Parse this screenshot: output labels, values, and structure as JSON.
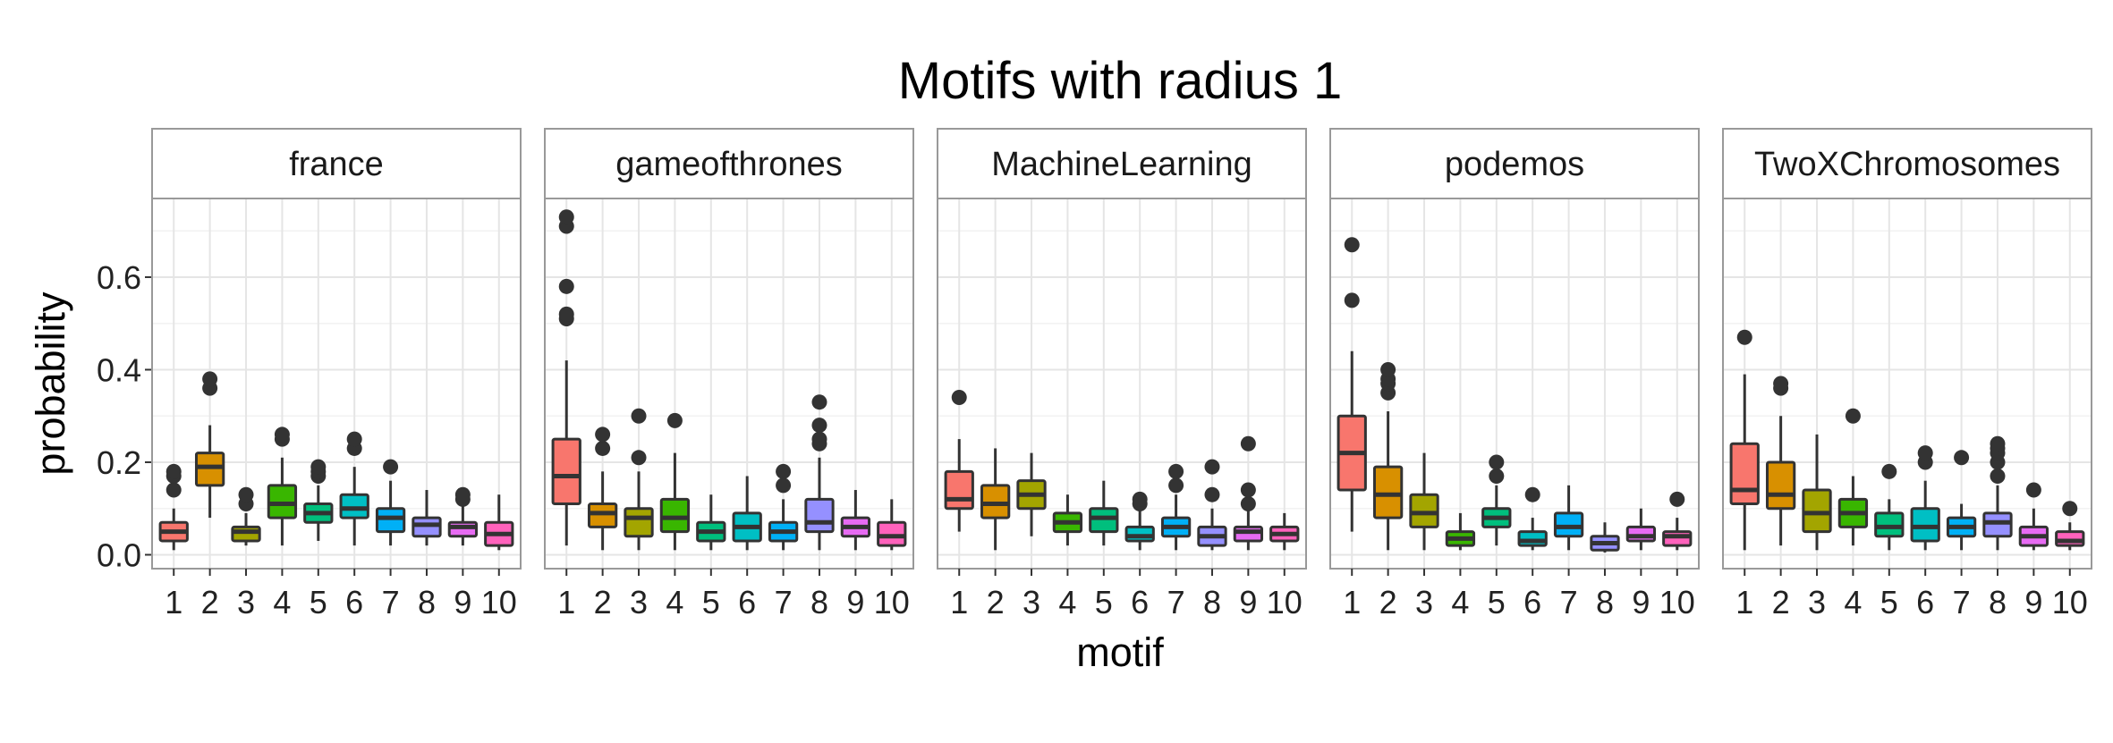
{
  "chart_data": {
    "type": "boxplot",
    "title": "Motifs with radius 1",
    "xlabel": "motif",
    "ylabel": "probability",
    "ylim": [
      -0.03,
      0.77
    ],
    "yticks": [
      0.0,
      0.2,
      0.4,
      0.6
    ],
    "ytick_labels": [
      "0.0",
      "0.2",
      "0.4",
      "0.6"
    ],
    "categories": [
      "1",
      "2",
      "3",
      "4",
      "5",
      "6",
      "7",
      "8",
      "9",
      "10"
    ],
    "grid": true,
    "legend": "none",
    "colors": [
      "#F8766D",
      "#D89000",
      "#A3A500",
      "#39B600",
      "#00BF7D",
      "#00BFC4",
      "#00B0F6",
      "#9590FF",
      "#E76BF3",
      "#FF62BC"
    ],
    "panels": [
      {
        "name": "france",
        "boxes": [
          {
            "q1": 0.03,
            "median": 0.05,
            "q3": 0.07,
            "whislo": 0.01,
            "whishi": 0.1,
            "outliers": [
              0.14,
              0.17,
              0.18
            ]
          },
          {
            "q1": 0.15,
            "median": 0.19,
            "q3": 0.22,
            "whislo": 0.08,
            "whishi": 0.28,
            "outliers": [
              0.36,
              0.38
            ]
          },
          {
            "q1": 0.03,
            "median": 0.05,
            "q3": 0.06,
            "whislo": 0.02,
            "whishi": 0.09,
            "outliers": [
              0.11,
              0.13
            ]
          },
          {
            "q1": 0.08,
            "median": 0.11,
            "q3": 0.15,
            "whislo": 0.02,
            "whishi": 0.21,
            "outliers": [
              0.25,
              0.26
            ]
          },
          {
            "q1": 0.07,
            "median": 0.09,
            "q3": 0.11,
            "whislo": 0.03,
            "whishi": 0.15,
            "outliers": [
              0.17,
              0.18,
              0.19
            ]
          },
          {
            "q1": 0.08,
            "median": 0.1,
            "q3": 0.13,
            "whislo": 0.02,
            "whishi": 0.19,
            "outliers": [
              0.23,
              0.25
            ]
          },
          {
            "q1": 0.05,
            "median": 0.08,
            "q3": 0.1,
            "whislo": 0.02,
            "whishi": 0.16,
            "outliers": [
              0.19
            ]
          },
          {
            "q1": 0.04,
            "median": 0.065,
            "q3": 0.08,
            "whislo": 0.02,
            "whishi": 0.14,
            "outliers": []
          },
          {
            "q1": 0.04,
            "median": 0.06,
            "q3": 0.07,
            "whislo": 0.02,
            "whishi": 0.11,
            "outliers": [
              0.12,
              0.13
            ]
          },
          {
            "q1": 0.02,
            "median": 0.045,
            "q3": 0.07,
            "whislo": 0.01,
            "whishi": 0.13,
            "outliers": []
          }
        ]
      },
      {
        "name": "gameofthrones",
        "boxes": [
          {
            "q1": 0.11,
            "median": 0.17,
            "q3": 0.25,
            "whislo": 0.02,
            "whishi": 0.42,
            "outliers": [
              0.51,
              0.52,
              0.58,
              0.71,
              0.73
            ]
          },
          {
            "q1": 0.06,
            "median": 0.09,
            "q3": 0.11,
            "whislo": 0.01,
            "whishi": 0.18,
            "outliers": [
              0.23,
              0.26
            ]
          },
          {
            "q1": 0.04,
            "median": 0.08,
            "q3": 0.1,
            "whislo": 0.01,
            "whishi": 0.18,
            "outliers": [
              0.21,
              0.3
            ]
          },
          {
            "q1": 0.05,
            "median": 0.08,
            "q3": 0.12,
            "whislo": 0.01,
            "whishi": 0.22,
            "outliers": [
              0.29
            ]
          },
          {
            "q1": 0.03,
            "median": 0.05,
            "q3": 0.07,
            "whislo": 0.01,
            "whishi": 0.13,
            "outliers": []
          },
          {
            "q1": 0.03,
            "median": 0.06,
            "q3": 0.09,
            "whislo": 0.01,
            "whishi": 0.17,
            "outliers": []
          },
          {
            "q1": 0.03,
            "median": 0.05,
            "q3": 0.07,
            "whislo": 0.01,
            "whishi": 0.12,
            "outliers": [
              0.15,
              0.18
            ]
          },
          {
            "q1": 0.05,
            "median": 0.07,
            "q3": 0.12,
            "whislo": 0.01,
            "whishi": 0.21,
            "outliers": [
              0.24,
              0.25,
              0.28,
              0.33
            ]
          },
          {
            "q1": 0.04,
            "median": 0.06,
            "q3": 0.08,
            "whislo": 0.01,
            "whishi": 0.14,
            "outliers": []
          },
          {
            "q1": 0.02,
            "median": 0.04,
            "q3": 0.07,
            "whislo": 0.01,
            "whishi": 0.12,
            "outliers": []
          }
        ]
      },
      {
        "name": "MachineLearning",
        "boxes": [
          {
            "q1": 0.1,
            "median": 0.12,
            "q3": 0.18,
            "whislo": 0.05,
            "whishi": 0.25,
            "outliers": [
              0.34
            ]
          },
          {
            "q1": 0.08,
            "median": 0.11,
            "q3": 0.15,
            "whislo": 0.01,
            "whishi": 0.23,
            "outliers": []
          },
          {
            "q1": 0.1,
            "median": 0.13,
            "q3": 0.16,
            "whislo": 0.04,
            "whishi": 0.22,
            "outliers": []
          },
          {
            "q1": 0.05,
            "median": 0.07,
            "q3": 0.09,
            "whislo": 0.02,
            "whishi": 0.13,
            "outliers": []
          },
          {
            "q1": 0.05,
            "median": 0.08,
            "q3": 0.1,
            "whislo": 0.02,
            "whishi": 0.16,
            "outliers": []
          },
          {
            "q1": 0.03,
            "median": 0.04,
            "q3": 0.06,
            "whislo": 0.01,
            "whishi": 0.1,
            "outliers": [
              0.11,
              0.12
            ]
          },
          {
            "q1": 0.04,
            "median": 0.06,
            "q3": 0.08,
            "whislo": 0.01,
            "whishi": 0.13,
            "outliers": [
              0.15,
              0.18
            ]
          },
          {
            "q1": 0.02,
            "median": 0.04,
            "q3": 0.06,
            "whislo": 0.01,
            "whishi": 0.1,
            "outliers": [
              0.13,
              0.19
            ]
          },
          {
            "q1": 0.03,
            "median": 0.05,
            "q3": 0.06,
            "whislo": 0.01,
            "whishi": 0.1,
            "outliers": [
              0.11,
              0.14,
              0.24
            ]
          },
          {
            "q1": 0.03,
            "median": 0.045,
            "q3": 0.06,
            "whislo": 0.01,
            "whishi": 0.09,
            "outliers": []
          }
        ]
      },
      {
        "name": "podemos",
        "boxes": [
          {
            "q1": 0.14,
            "median": 0.22,
            "q3": 0.3,
            "whislo": 0.05,
            "whishi": 0.44,
            "outliers": [
              0.55,
              0.67
            ]
          },
          {
            "q1": 0.08,
            "median": 0.13,
            "q3": 0.19,
            "whislo": 0.01,
            "whishi": 0.31,
            "outliers": [
              0.35,
              0.37,
              0.38,
              0.4
            ]
          },
          {
            "q1": 0.06,
            "median": 0.09,
            "q3": 0.13,
            "whislo": 0.01,
            "whishi": 0.22,
            "outliers": []
          },
          {
            "q1": 0.02,
            "median": 0.035,
            "q3": 0.05,
            "whislo": 0.01,
            "whishi": 0.09,
            "outliers": []
          },
          {
            "q1": 0.06,
            "median": 0.08,
            "q3": 0.1,
            "whislo": 0.02,
            "whishi": 0.15,
            "outliers": [
              0.17,
              0.2
            ]
          },
          {
            "q1": 0.02,
            "median": 0.03,
            "q3": 0.05,
            "whislo": 0.01,
            "whishi": 0.08,
            "outliers": [
              0.13
            ]
          },
          {
            "q1": 0.04,
            "median": 0.06,
            "q3": 0.09,
            "whislo": 0.01,
            "whishi": 0.15,
            "outliers": []
          },
          {
            "q1": 0.01,
            "median": 0.025,
            "q3": 0.04,
            "whislo": 0.005,
            "whishi": 0.07,
            "outliers": []
          },
          {
            "q1": 0.03,
            "median": 0.04,
            "q3": 0.06,
            "whislo": 0.01,
            "whishi": 0.1,
            "outliers": []
          },
          {
            "q1": 0.02,
            "median": 0.04,
            "q3": 0.05,
            "whislo": 0.01,
            "whishi": 0.08,
            "outliers": [
              0.12
            ]
          }
        ]
      },
      {
        "name": "TwoXChromosomes",
        "boxes": [
          {
            "q1": 0.11,
            "median": 0.14,
            "q3": 0.24,
            "whislo": 0.01,
            "whishi": 0.39,
            "outliers": [
              0.47
            ]
          },
          {
            "q1": 0.1,
            "median": 0.13,
            "q3": 0.2,
            "whislo": 0.02,
            "whishi": 0.3,
            "outliers": [
              0.36,
              0.37
            ]
          },
          {
            "q1": 0.05,
            "median": 0.09,
            "q3": 0.14,
            "whislo": 0.01,
            "whishi": 0.26,
            "outliers": []
          },
          {
            "q1": 0.06,
            "median": 0.09,
            "q3": 0.12,
            "whislo": 0.02,
            "whishi": 0.17,
            "outliers": [
              0.3
            ]
          },
          {
            "q1": 0.04,
            "median": 0.06,
            "q3": 0.09,
            "whislo": 0.01,
            "whishi": 0.12,
            "outliers": [
              0.18
            ]
          },
          {
            "q1": 0.03,
            "median": 0.06,
            "q3": 0.1,
            "whislo": 0.01,
            "whishi": 0.16,
            "outliers": [
              0.2,
              0.22
            ]
          },
          {
            "q1": 0.04,
            "median": 0.06,
            "q3": 0.08,
            "whislo": 0.01,
            "whishi": 0.11,
            "outliers": [
              0.21
            ]
          },
          {
            "q1": 0.04,
            "median": 0.07,
            "q3": 0.09,
            "whislo": 0.01,
            "whishi": 0.15,
            "outliers": [
              0.17,
              0.2,
              0.22,
              0.23,
              0.24
            ]
          },
          {
            "q1": 0.02,
            "median": 0.04,
            "q3": 0.06,
            "whislo": 0.01,
            "whishi": 0.1,
            "outliers": [
              0.14
            ]
          },
          {
            "q1": 0.02,
            "median": 0.03,
            "q3": 0.05,
            "whislo": 0.01,
            "whishi": 0.07,
            "outliers": [
              0.1
            ]
          }
        ]
      }
    ]
  }
}
